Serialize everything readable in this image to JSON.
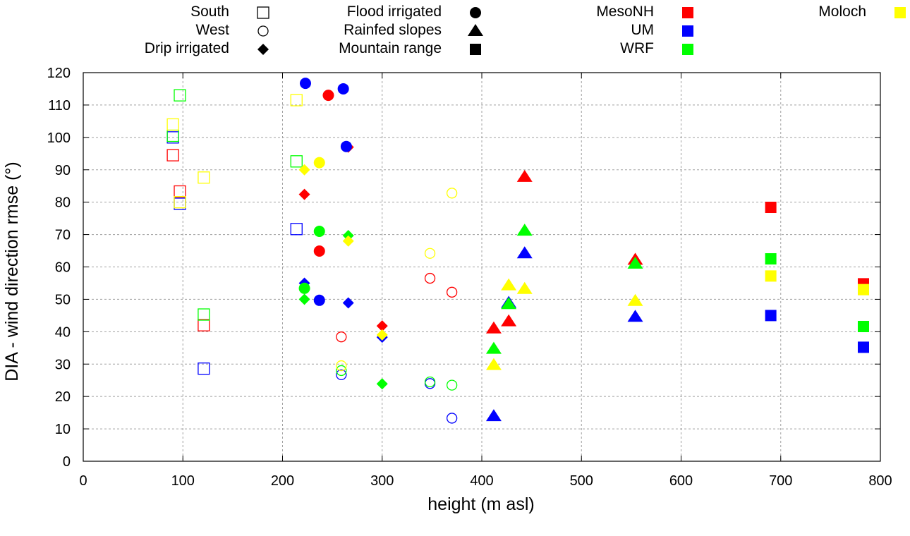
{
  "chart_data": {
    "type": "scatter",
    "title": "",
    "xlabel": "height (m asl)",
    "ylabel": "DIA - wind direction rmse (°)",
    "xlim": [
      0,
      800
    ],
    "ylim": [
      0,
      120
    ],
    "xticks": [
      0,
      100,
      200,
      300,
      400,
      500,
      600,
      700,
      800
    ],
    "yticks": [
      0,
      10,
      20,
      30,
      40,
      50,
      60,
      70,
      80,
      90,
      100,
      110,
      120
    ],
    "grid": true,
    "legend_placement": "top (above plot)",
    "legend_shapes": [
      {
        "label": "South",
        "shape": "open-square"
      },
      {
        "label": "West",
        "shape": "open-circle"
      },
      {
        "label": "Drip irrigated",
        "shape": "diamond"
      },
      {
        "label": "Flood irrigated",
        "shape": "circle"
      },
      {
        "label": "Rainfed slopes",
        "shape": "triangle"
      },
      {
        "label": "Mountain range",
        "shape": "square"
      }
    ],
    "legend_models": [
      {
        "label": "MesoNH",
        "color": "#ff0000"
      },
      {
        "label": "UM",
        "color": "#0000ff"
      },
      {
        "label": "WRF",
        "color": "#00ff00"
      },
      {
        "label": "Moloch",
        "color": "#ffff00"
      }
    ],
    "series": [
      {
        "name": "MesoNH",
        "color": "#ff0000",
        "points": [
          {
            "x": 90,
            "y": 94.5,
            "shape": "open-square"
          },
          {
            "x": 97,
            "y": 83.3,
            "shape": "open-square"
          },
          {
            "x": 121,
            "y": 42,
            "shape": "open-square"
          },
          {
            "x": 259,
            "y": 38.4,
            "shape": "open-circle"
          },
          {
            "x": 348,
            "y": 56.5,
            "shape": "open-circle"
          },
          {
            "x": 370,
            "y": 52.2,
            "shape": "open-circle"
          },
          {
            "x": 222,
            "y": 82.4,
            "shape": "diamond"
          },
          {
            "x": 266,
            "y": 97,
            "shape": "diamond"
          },
          {
            "x": 300,
            "y": 41.8,
            "shape": "diamond"
          },
          {
            "x": 246,
            "y": 113,
            "shape": "circle"
          },
          {
            "x": 237,
            "y": 64.9,
            "shape": "circle"
          },
          {
            "x": 443,
            "y": 87.8,
            "shape": "triangle"
          },
          {
            "x": 427,
            "y": 43.2,
            "shape": "triangle"
          },
          {
            "x": 412,
            "y": 41,
            "shape": "triangle"
          },
          {
            "x": 554,
            "y": 62.2,
            "shape": "triangle"
          },
          {
            "x": 690,
            "y": 78.4,
            "shape": "square"
          },
          {
            "x": 783,
            "y": 54.8,
            "shape": "square"
          }
        ]
      },
      {
        "name": "UM",
        "color": "#0000ff",
        "points": [
          {
            "x": 90,
            "y": 100,
            "shape": "open-square"
          },
          {
            "x": 97,
            "y": 79.5,
            "shape": "open-square"
          },
          {
            "x": 121,
            "y": 28.6,
            "shape": "open-square"
          },
          {
            "x": 214,
            "y": 71.7,
            "shape": "open-square"
          },
          {
            "x": 259,
            "y": 26.7,
            "shape": "open-circle"
          },
          {
            "x": 348,
            "y": 24,
            "shape": "open-circle"
          },
          {
            "x": 370,
            "y": 13.3,
            "shape": "open-circle"
          },
          {
            "x": 222,
            "y": 55,
            "shape": "diamond"
          },
          {
            "x": 266,
            "y": 48.9,
            "shape": "diamond"
          },
          {
            "x": 300,
            "y": 38.3,
            "shape": "diamond"
          },
          {
            "x": 223,
            "y": 116.7,
            "shape": "circle"
          },
          {
            "x": 261,
            "y": 115,
            "shape": "circle"
          },
          {
            "x": 264,
            "y": 97.2,
            "shape": "circle"
          },
          {
            "x": 237,
            "y": 49.7,
            "shape": "circle"
          },
          {
            "x": 443,
            "y": 64.2,
            "shape": "triangle"
          },
          {
            "x": 427,
            "y": 48.9,
            "shape": "triangle"
          },
          {
            "x": 412,
            "y": 13.9,
            "shape": "triangle"
          },
          {
            "x": 554,
            "y": 44.6,
            "shape": "triangle"
          },
          {
            "x": 690,
            "y": 45,
            "shape": "square"
          },
          {
            "x": 783,
            "y": 35.2,
            "shape": "square"
          }
        ]
      },
      {
        "name": "WRF",
        "color": "#00ff00",
        "points": [
          {
            "x": 90,
            "y": 100.5,
            "shape": "open-square"
          },
          {
            "x": 97,
            "y": 113,
            "shape": "open-square"
          },
          {
            "x": 121,
            "y": 45.3,
            "shape": "open-square"
          },
          {
            "x": 214,
            "y": 92.6,
            "shape": "open-square"
          },
          {
            "x": 259,
            "y": 28,
            "shape": "open-circle"
          },
          {
            "x": 348,
            "y": 24.5,
            "shape": "open-circle"
          },
          {
            "x": 370,
            "y": 23.5,
            "shape": "open-circle"
          },
          {
            "x": 222,
            "y": 50,
            "shape": "diamond"
          },
          {
            "x": 266,
            "y": 69.7,
            "shape": "diamond"
          },
          {
            "x": 300,
            "y": 23.9,
            "shape": "diamond"
          },
          {
            "x": 237,
            "y": 71,
            "shape": "circle"
          },
          {
            "x": 222,
            "y": 53.4,
            "shape": "circle"
          },
          {
            "x": 443,
            "y": 71.2,
            "shape": "triangle"
          },
          {
            "x": 427,
            "y": 48.5,
            "shape": "triangle"
          },
          {
            "x": 412,
            "y": 34.7,
            "shape": "triangle"
          },
          {
            "x": 554,
            "y": 61,
            "shape": "triangle"
          },
          {
            "x": 690,
            "y": 62.5,
            "shape": "square"
          },
          {
            "x": 783,
            "y": 41.6,
            "shape": "square"
          }
        ]
      },
      {
        "name": "Moloch",
        "color": "#ffff00",
        "points": [
          {
            "x": 90,
            "y": 104,
            "shape": "open-square"
          },
          {
            "x": 97,
            "y": 80,
            "shape": "open-square"
          },
          {
            "x": 121,
            "y": 87.6,
            "shape": "open-square"
          },
          {
            "x": 214,
            "y": 111.5,
            "shape": "open-square"
          },
          {
            "x": 259,
            "y": 29.5,
            "shape": "open-circle"
          },
          {
            "x": 348,
            "y": 64.2,
            "shape": "open-circle"
          },
          {
            "x": 370,
            "y": 82.8,
            "shape": "open-circle"
          },
          {
            "x": 222,
            "y": 90,
            "shape": "diamond"
          },
          {
            "x": 266,
            "y": 68,
            "shape": "diamond"
          },
          {
            "x": 300,
            "y": 39,
            "shape": "diamond"
          },
          {
            "x": 237,
            "y": 92.2,
            "shape": "circle"
          },
          {
            "x": 443,
            "y": 53.2,
            "shape": "triangle"
          },
          {
            "x": 427,
            "y": 54.3,
            "shape": "triangle"
          },
          {
            "x": 412,
            "y": 29.7,
            "shape": "triangle"
          },
          {
            "x": 554,
            "y": 49.5,
            "shape": "triangle"
          },
          {
            "x": 690,
            "y": 57.2,
            "shape": "square"
          },
          {
            "x": 783,
            "y": 53,
            "shape": "square"
          }
        ]
      }
    ]
  }
}
